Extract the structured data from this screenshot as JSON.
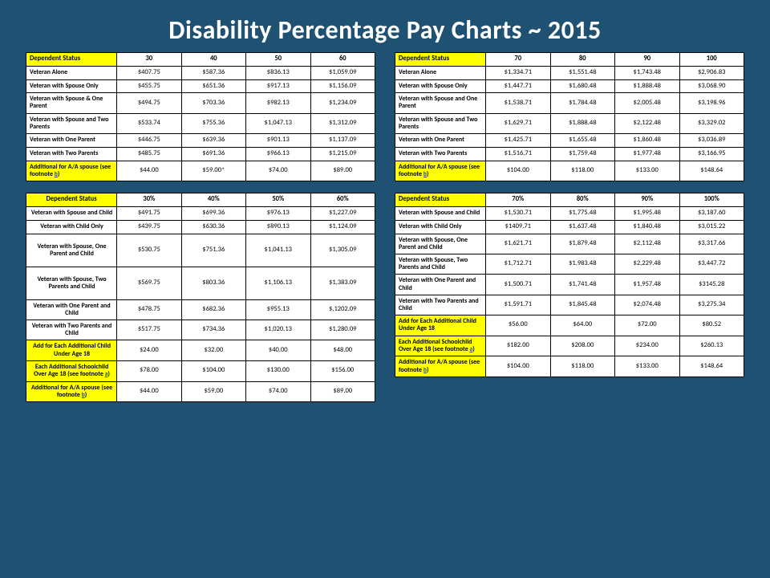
{
  "title": "Disability Percentage Pay Charts  ~ 2015",
  "colors": {
    "background": "#1f5173",
    "highlight": "#ffff00",
    "text": "#000000",
    "title": "#ffffff",
    "cell_bg": "#ffffff",
    "border": "#000000"
  },
  "tables": {
    "top_left": {
      "header_label": "Dependent Status",
      "cols": [
        "30",
        "40",
        "50",
        "60"
      ],
      "rows": [
        {
          "l": "Veteran Alone",
          "v": [
            "$407.75",
            "$587.36",
            "$836.13",
            "$1,059.09"
          ]
        },
        {
          "l": "Veteran with Spouse Only",
          "v": [
            "$455.75",
            "$651.36",
            "$917.13",
            "$1,156.09"
          ]
        },
        {
          "l": "Veteran with Spouse & One Parent",
          "v": [
            "$494.75",
            "$703.36",
            "$982.13",
            "$1,234.09"
          ]
        },
        {
          "l": "Veteran with Spouse and Two Parents",
          "v": [
            "$533.74",
            "$755.36",
            "$1,047.13",
            "$1,312.09"
          ]
        },
        {
          "l": "Veteran with One Parent",
          "v": [
            "$446.75",
            "$639.36",
            "$901.13",
            "$1,137.09"
          ]
        },
        {
          "l": "Veteran with Two Parents",
          "v": [
            "$485.75",
            "$691.36",
            "$966.13",
            "$1,215.09"
          ]
        },
        {
          "l": "Additional for A/A spouse (see footnote b)",
          "v": [
            "$44.00",
            "$59.00*",
            "$74.00",
            "$89.00"
          ],
          "hi": true
        }
      ]
    },
    "bottom_left": {
      "header_label": "Dependent Status",
      "header_center": true,
      "cols": [
        "30%",
        "40%",
        "50%",
        "60%"
      ],
      "rows": [
        {
          "l": "Veteran with Spouse and Child",
          "v": [
            "$491.75",
            "$699.36",
            "$976.13",
            "$1,227.09"
          ],
          "lc": true
        },
        {
          "l": "Veteran with Child Only",
          "v": [
            "$439.75",
            "$630.36",
            "$890.13",
            "$1,124.09"
          ],
          "lc": true
        },
        {
          "l": "Veteran with Spouse, One Parent and Child",
          "v": [
            "$530.75",
            "$751.36",
            "$1,041.13",
            "$1,305.09"
          ],
          "lc": true,
          "tall": true
        },
        {
          "l": "Veteran with Spouse, Two Parents and Child",
          "v": [
            "$569.75",
            "$803.36",
            "$1,106.13",
            "$1,383.09"
          ],
          "lc": true,
          "tall": true
        },
        {
          "l": "Veteran with One Parent and Child",
          "v": [
            "$478.75",
            "$682.36",
            "$955.13",
            "$,1202.09"
          ],
          "lc": true
        },
        {
          "l": "Veteran with Two Parents and Child",
          "v": [
            "$517.75",
            "$734.36",
            "$1,020.13",
            "$1,280.09"
          ],
          "lc": true
        },
        {
          "l": "Add for Each Additional Child Under Age 18",
          "v": [
            "$24.00",
            "$32.00",
            "$40.00",
            "$48.00"
          ],
          "hi": true,
          "lc": true
        },
        {
          "l": "Each Additional Schoolchild Over Age 18 (see footnote a)",
          "v": [
            "$78.00",
            "$104.00",
            "$130.00",
            "$156.00"
          ],
          "hi": true,
          "lc": true
        },
        {
          "l": "Additional for A/A spouse (see footnote b)",
          "v": [
            "$44.00",
            "$59.00",
            "$74.00",
            "$89.00"
          ],
          "hi": true,
          "lc": true
        }
      ]
    },
    "top_right": {
      "header_label": "Dependent Status",
      "cols": [
        "70",
        "80",
        "90",
        "100"
      ],
      "rows": [
        {
          "l": "Veteran Alone",
          "v": [
            "$1,334.71",
            "$1,551.48",
            "$1,743.48",
            "$2,906.83"
          ]
        },
        {
          "l": "Veteran with Spouse Only",
          "v": [
            "$1,447.71",
            "$1,680.48",
            "$1,888.48",
            "$3,068.90"
          ]
        },
        {
          "l": "Veteran with Spouse and One Parent",
          "v": [
            "$1,538.71",
            "$1,784.48",
            "$2,005.48",
            "$3,198.96"
          ]
        },
        {
          "l": "Veteran with Spouse and Two Parents",
          "v": [
            "$1,629.71",
            "$1,888.48",
            "$2,122.48",
            "$3,329.02"
          ]
        },
        {
          "l": "Veteran with One Parent",
          "v": [
            "$1,425.71",
            "$1,655.48",
            "$1,860.48",
            "$3,036.89"
          ]
        },
        {
          "l": "Veteran with Two Parents",
          "v": [
            "$1,516.71",
            "$1,759.48",
            "$1,977.48",
            "$3,166.95"
          ]
        },
        {
          "l": "Additional for A/A spouse (see footnote b)",
          "v": [
            "$104.00",
            "$118.00",
            "$133.00",
            "$148.64"
          ],
          "hi": true
        }
      ]
    },
    "bottom_right": {
      "header_label": "Dependent Status",
      "cols": [
        "70%",
        "80%",
        "90%",
        "100%"
      ],
      "rows": [
        {
          "l": "Veteran with Spouse and Child",
          "v": [
            "$1,530.71",
            "$1,775.48",
            "$1,995.48",
            "$3,187.60"
          ]
        },
        {
          "l": "Veteran with Child Only",
          "v": [
            "$1409.71",
            "$1,637.48",
            "$1,840.48",
            "$3,015.22"
          ]
        },
        {
          "l": "Veteran with Spouse, One Parent and Child",
          "v": [
            "$1,621.71",
            "$1,879.48",
            "$2,112.48",
            "$3,317.66"
          ]
        },
        {
          "l": "Veteran with Spouse, Two Parents and Child",
          "v": [
            "$1,712.71",
            "$1,983.48",
            "$2,229.48",
            "$3,447.72"
          ]
        },
        {
          "l": "Veteran with One Parent and Child",
          "v": [
            "$1,500.71",
            "$1,741.48",
            "$1,957.48",
            "$3145.28"
          ]
        },
        {
          "l": "Veteran with Two Parents and Child",
          "v": [
            "$1,591.71",
            "$1,845.48",
            "$2,074.48",
            "$3,275.34"
          ]
        },
        {
          "l": "Add for Each Additional Child Under Age 18",
          "v": [
            "$56.00",
            "$64.00",
            "$72.00",
            "$80.52"
          ],
          "hi": true
        },
        {
          "l": "Each Additional Schoolchild Over Age 18 (see footnote a)",
          "v": [
            "$182.00",
            "$208.00",
            "$234.00",
            "$260.13"
          ],
          "hi": true
        },
        {
          "l": "Additional for A/A spouse (see footnote b)",
          "v": [
            "$104.00",
            "$118.00",
            "$133.00",
            "$148.64"
          ],
          "hi": true
        }
      ]
    }
  }
}
